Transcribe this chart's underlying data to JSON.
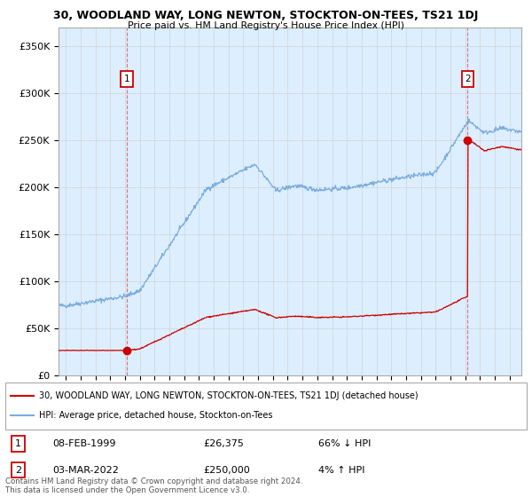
{
  "title": "30, WOODLAND WAY, LONG NEWTON, STOCKTON-ON-TEES, TS21 1DJ",
  "subtitle": "Price paid vs. HM Land Registry's House Price Index (HPI)",
  "ylabel_ticks": [
    "£0",
    "£50K",
    "£100K",
    "£150K",
    "£200K",
    "£250K",
    "£300K",
    "£350K"
  ],
  "ytick_values": [
    0,
    50000,
    100000,
    150000,
    200000,
    250000,
    300000,
    350000
  ],
  "ylim": [
    0,
    370000
  ],
  "xlim_start": 1994.5,
  "xlim_end": 2025.8,
  "hpi_color": "#7aadde",
  "property_color": "#cc0000",
  "plot_bg_color": "#ddeeff",
  "sale1_x": 1999.11,
  "sale1_y": 26375,
  "sale1_label": "1",
  "sale2_x": 2022.17,
  "sale2_y": 250000,
  "sale2_label": "2",
  "legend_property": "30, WOODLAND WAY, LONG NEWTON, STOCKTON-ON-TEES, TS21 1DJ (detached house)",
  "legend_hpi": "HPI: Average price, detached house, Stockton-on-Tees",
  "annotation1_date": "08-FEB-1999",
  "annotation1_price": "£26,375",
  "annotation1_hpi": "66% ↓ HPI",
  "annotation2_date": "03-MAR-2022",
  "annotation2_price": "£250,000",
  "annotation2_hpi": "4% ↑ HPI",
  "footer": "Contains HM Land Registry data © Crown copyright and database right 2024.\nThis data is licensed under the Open Government Licence v3.0.",
  "background_color": "#ffffff",
  "grid_color": "#cccccc"
}
